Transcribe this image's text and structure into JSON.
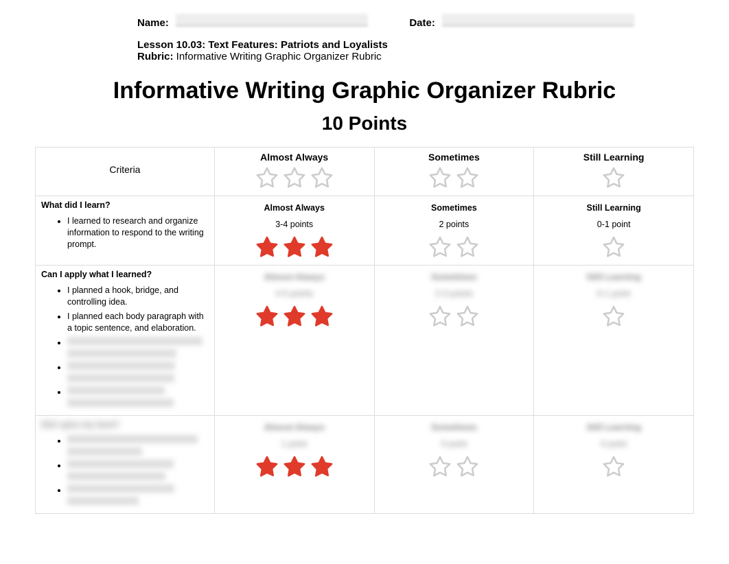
{
  "header": {
    "name_label": "Name:",
    "date_label": "Date:",
    "lesson": "Lesson 10.03: Text Features: Patriots and Loyalists",
    "rubric_label": "Rubric:",
    "rubric_name": "Informative Writing Graphic Organizer Rubric"
  },
  "title": "Informative Writing Graphic Organizer Rubric",
  "subtitle": "10 Points",
  "columns": {
    "criteria": "Criteria",
    "almost": "Almost Always",
    "sometimes": "Sometimes",
    "still": "Still Learning"
  },
  "header_stars": {
    "almost": 3,
    "sometimes": 2,
    "still": 1
  },
  "colors": {
    "star_outline": "#cccccc",
    "star_fill_red": "#e03a2a",
    "border": "#dddddd"
  },
  "rows": [
    {
      "question": "What did I learn?",
      "bullets": [
        "I learned to research and organize information to respond to the writing prompt."
      ],
      "bullets_blurred": 0,
      "almost": {
        "label": "Almost Always",
        "points": "3-4 points",
        "stars": 3,
        "filled": true
      },
      "sometimes": {
        "label": "Sometimes",
        "points": "2 points",
        "stars": 2,
        "filled": false
      },
      "still": {
        "label": "Still Learning",
        "points": "0-1 point",
        "stars": 1,
        "filled": false
      },
      "row_blurred": false,
      "levels_blurred": false
    },
    {
      "question": "Can I apply what I learned?",
      "bullets": [
        "I planned a hook, bridge, and controlling idea.",
        "I planned each body paragraph with a topic sentence, and elaboration."
      ],
      "bullets_blurred": 3,
      "almost": {
        "label": "Almost Always",
        "points": "4-5 points",
        "stars": 3,
        "filled": true
      },
      "sometimes": {
        "label": "Sometimes",
        "points": "2-3 points",
        "stars": 2,
        "filled": false
      },
      "still": {
        "label": "Still Learning",
        "points": "0-1 point",
        "stars": 1,
        "filled": false
      },
      "row_blurred": false,
      "levels_blurred": true
    },
    {
      "question": "Did I give my best?",
      "bullets": [],
      "bullets_blurred": 3,
      "almost": {
        "label": "Almost Always",
        "points": "1 point",
        "stars": 3,
        "filled": true
      },
      "sometimes": {
        "label": "Sometimes",
        "points": "0 point",
        "stars": 2,
        "filled": false
      },
      "still": {
        "label": "Still Learning",
        "points": "0 point",
        "stars": 1,
        "filled": false
      },
      "row_blurred": true,
      "levels_blurred": true
    }
  ]
}
